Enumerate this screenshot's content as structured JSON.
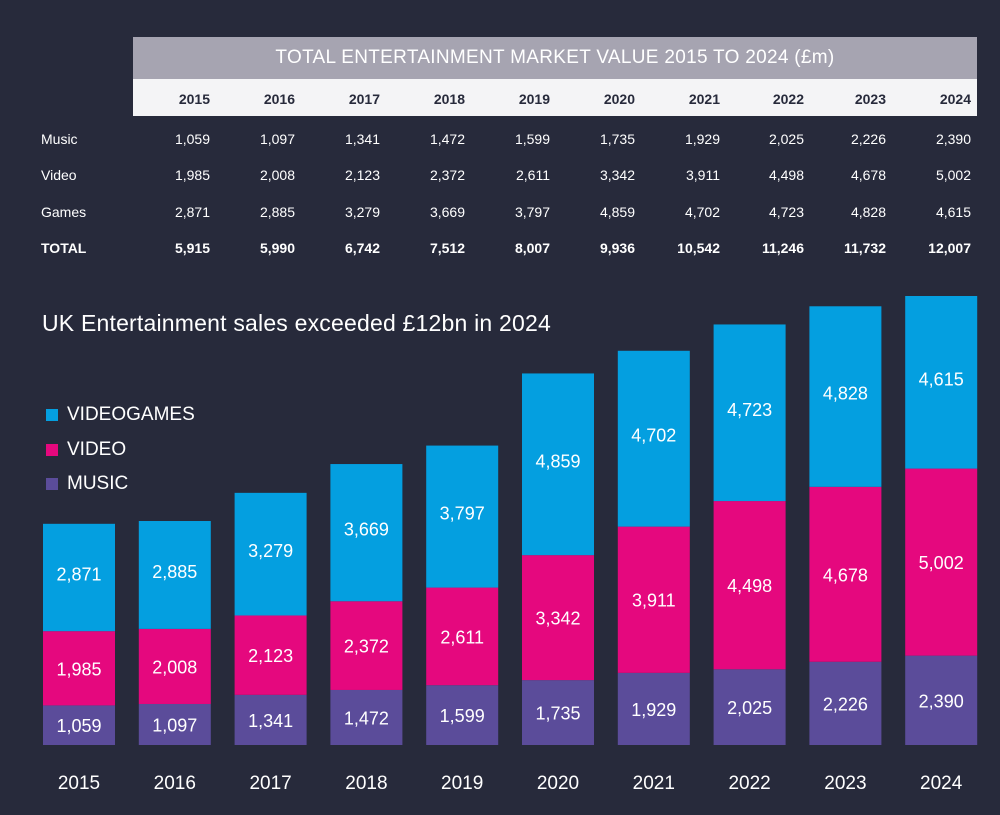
{
  "table": {
    "title": "TOTAL ENTERTAINMENT MARKET VALUE 2015 TO 2024 (£m)",
    "years": [
      "2015",
      "2016",
      "2017",
      "2018",
      "2019",
      "2020",
      "2021",
      "2022",
      "2023",
      "2024"
    ],
    "rows": [
      {
        "label": "Music",
        "values": [
          "1,059",
          "1,097",
          "1,341",
          "1,472",
          "1,599",
          "1,735",
          "1,929",
          "2,025",
          "2,226",
          "2,390"
        ]
      },
      {
        "label": "Video",
        "values": [
          "1,985",
          "2,008",
          "2,123",
          "2,372",
          "2,611",
          "3,342",
          "3,911",
          "4,498",
          "4,678",
          "5,002"
        ]
      },
      {
        "label": "Games",
        "values": [
          "2,871",
          "2,885",
          "3,279",
          "3,669",
          "3,797",
          "4,859",
          "4,702",
          "4,723",
          "4,828",
          "4,615"
        ]
      },
      {
        "label": "TOTAL",
        "values": [
          "5,915",
          "5,990",
          "6,742",
          "7,512",
          "8,007",
          "9,936",
          "10,542",
          "11,246",
          "11,732",
          "12,007"
        ]
      }
    ]
  },
  "colors": {
    "music": "#5b4c9a",
    "video": "#e5087e",
    "videogames": "#049fe0"
  },
  "chart_data": {
    "type": "bar",
    "stacked": true,
    "title": "UK Entertainment sales exceeded £12bn in 2024",
    "xlabel": "",
    "ylabel": "",
    "categories": [
      "2015",
      "2016",
      "2017",
      "2018",
      "2019",
      "2020",
      "2021",
      "2022",
      "2023",
      "2024"
    ],
    "series": [
      {
        "name": "MUSIC",
        "values": [
          1059,
          1097,
          1341,
          1472,
          1599,
          1735,
          1929,
          2025,
          2226,
          2390
        ],
        "labels": [
          "1,059",
          "1,097",
          "1,341",
          "1,472",
          "1,599",
          "1,735",
          "1,929",
          "2,025",
          "2,226",
          "2,390"
        ]
      },
      {
        "name": "VIDEO",
        "values": [
          1985,
          2008,
          2123,
          2372,
          2611,
          3342,
          3911,
          4498,
          4678,
          5002
        ],
        "labels": [
          "1,985",
          "2,008",
          "2,123",
          "2,372",
          "2,611",
          "3,342",
          "3,911",
          "4,498",
          "4,678",
          "5,002"
        ]
      },
      {
        "name": "VIDEOGAMES",
        "values": [
          2871,
          2885,
          3279,
          3669,
          3797,
          4859,
          4702,
          4723,
          4828,
          4615
        ],
        "labels": [
          "2,871",
          "2,885",
          "3,279",
          "3,669",
          "3,797",
          "4,859",
          "4,702",
          "4,723",
          "4,828",
          "4,615"
        ]
      }
    ],
    "legend": [
      "VIDEOGAMES",
      "VIDEO",
      "MUSIC"
    ],
    "ylim": [
      0,
      12007
    ],
    "grid": false
  }
}
